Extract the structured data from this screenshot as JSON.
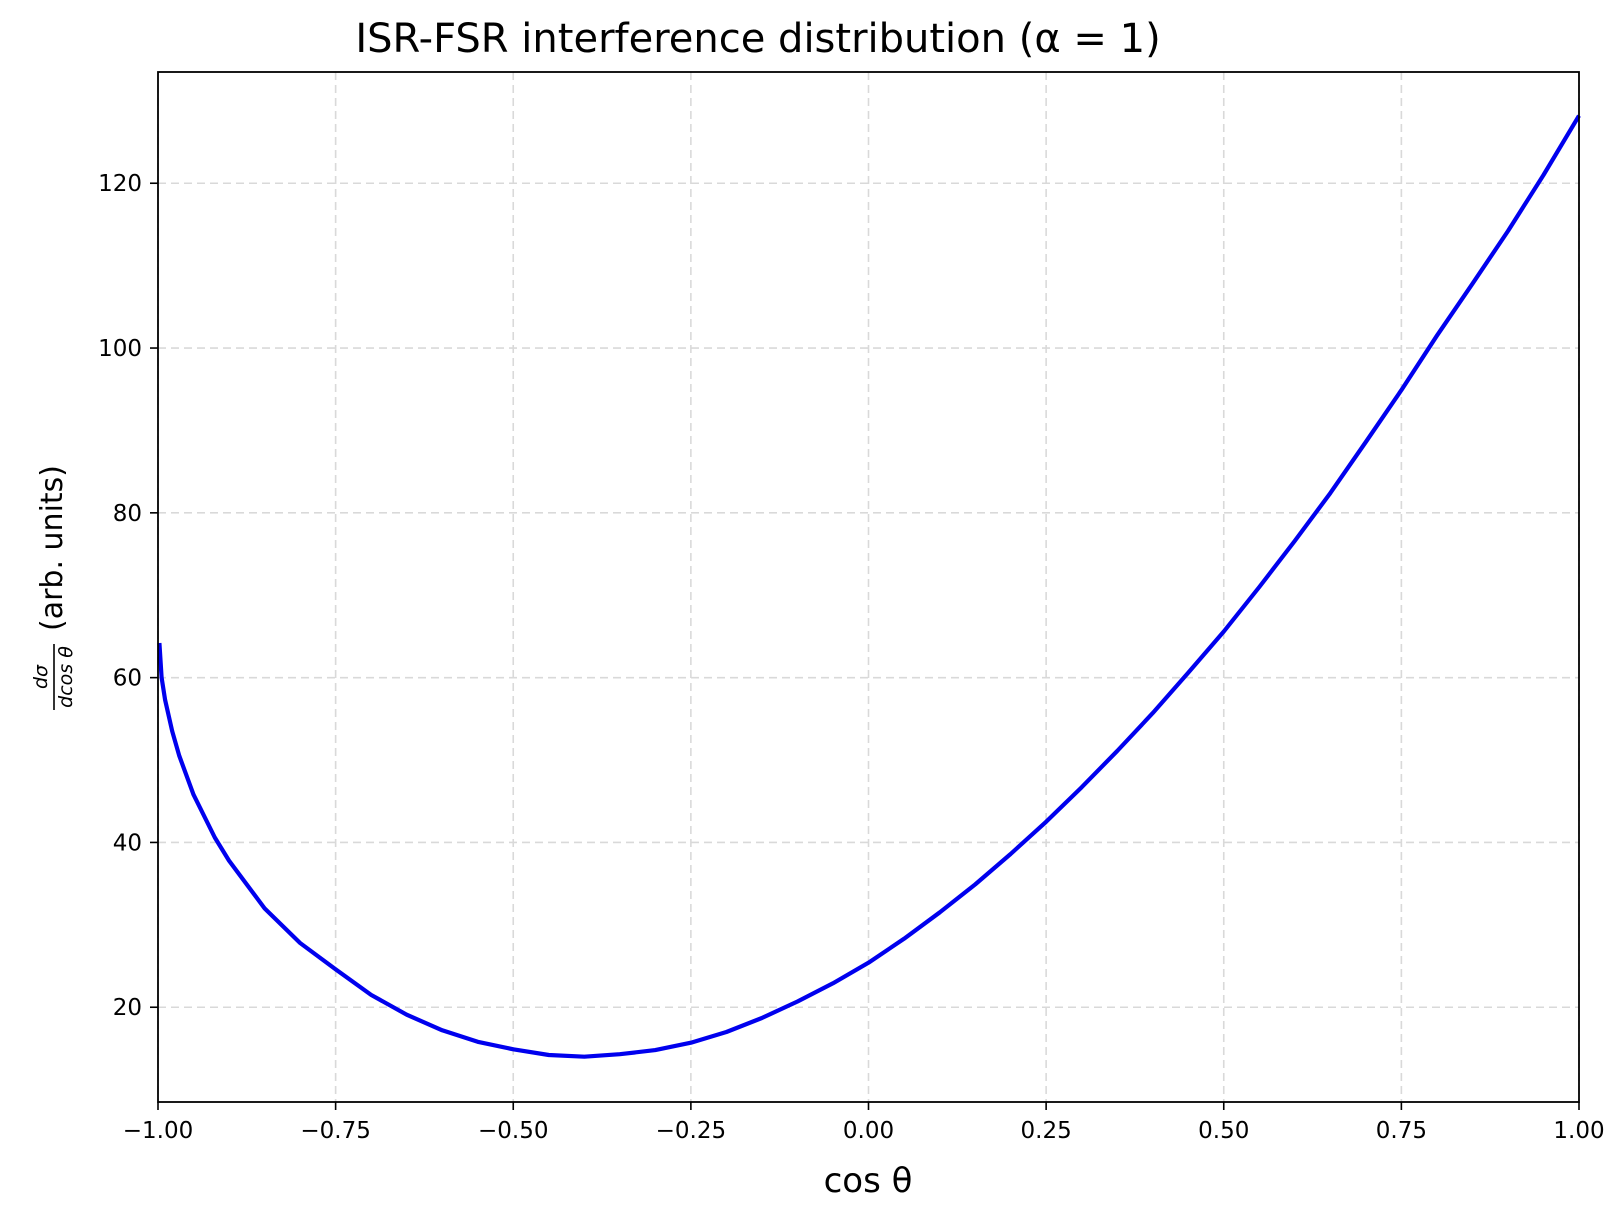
{
  "chart_data": {
    "type": "line",
    "title": "ISR-FSR interference distribution (α = 1)",
    "xlabel": "cos θ",
    "ylabel": {
      "fraction_numerator": "dσ",
      "fraction_denominator": "dcos θ",
      "text": "(arb. units)"
    },
    "xlim": [
      -1.0,
      1.0
    ],
    "ylim": [
      8.5,
      133.5
    ],
    "x_ticks": [
      -1.0,
      -0.75,
      -0.5,
      -0.25,
      0.0,
      0.25,
      0.5,
      0.75,
      1.0
    ],
    "x_tick_labels": [
      "−1.00",
      "−0.75",
      "−0.50",
      "−0.25",
      "0.00",
      "0.25",
      "0.50",
      "0.75",
      "1.00"
    ],
    "y_ticks": [
      20,
      40,
      60,
      80,
      100,
      120
    ],
    "y_tick_labels": [
      "20",
      "40",
      "60",
      "80",
      "100",
      "120"
    ],
    "grid": true,
    "series": [
      {
        "color": "#0000ee",
        "x": [
          -0.998,
          -0.995,
          -0.99,
          -0.98,
          -0.97,
          -0.95,
          -0.92,
          -0.9,
          -0.85,
          -0.8,
          -0.75,
          -0.7,
          -0.65,
          -0.6,
          -0.55,
          -0.5,
          -0.45,
          -0.4,
          -0.35,
          -0.3,
          -0.25,
          -0.2,
          -0.15,
          -0.1,
          -0.05,
          0.0,
          0.05,
          0.1,
          0.15,
          0.2,
          0.25,
          0.3,
          0.35,
          0.4,
          0.45,
          0.5,
          0.55,
          0.6,
          0.65,
          0.7,
          0.75,
          0.8,
          0.85,
          0.9,
          0.95,
          1.0
        ],
        "y": [
          64.2,
          60.0,
          57.3,
          53.5,
          50.5,
          45.8,
          40.6,
          37.8,
          32.0,
          27.8,
          24.6,
          21.5,
          19.1,
          17.2,
          15.8,
          14.9,
          14.2,
          14.0,
          14.3,
          14.8,
          15.7,
          17.0,
          18.7,
          20.7,
          22.9,
          25.4,
          28.3,
          31.5,
          34.9,
          38.6,
          42.5,
          46.7,
          51.1,
          55.7,
          60.6,
          65.6,
          71.0,
          76.6,
          82.4,
          88.6,
          94.9,
          101.5,
          107.8,
          114.2,
          121.0,
          128.2
        ]
      }
    ]
  }
}
